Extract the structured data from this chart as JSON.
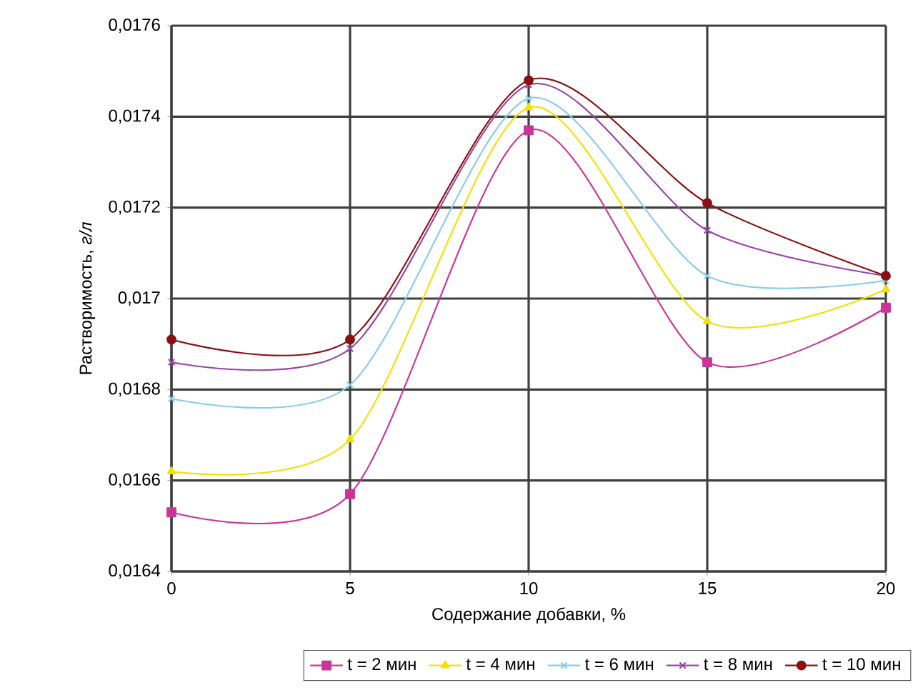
{
  "chart_data": {
    "type": "line",
    "xlabel": "Содержание добавки, %",
    "ylabel": "Растворимость, *г/л*",
    "x": [
      0,
      5,
      10,
      15,
      20
    ],
    "xlim": [
      0,
      20
    ],
    "xticks": [
      0,
      5,
      10,
      15,
      20
    ],
    "ylim": [
      0.0164,
      0.0176
    ],
    "yticks": [
      {
        "value": 0.0164,
        "label": "0,0164"
      },
      {
        "value": 0.0166,
        "label": "0,0166"
      },
      {
        "value": 0.0168,
        "label": "0,0168"
      },
      {
        "value": 0.017,
        "label": "0,017"
      },
      {
        "value": 0.0172,
        "label": "0,0172"
      },
      {
        "value": 0.0174,
        "label": "0,0174"
      },
      {
        "value": 0.0176,
        "label": "0,0176"
      }
    ],
    "grid": true,
    "legend": "bottom",
    "series": [
      {
        "name": "t = 2 мин",
        "color": "#cc3399",
        "marker": "square",
        "values": [
          0.01653,
          0.01657,
          0.01737,
          0.01686,
          0.01698
        ]
      },
      {
        "name": "t = 4 мин",
        "color": "#f5e000",
        "marker": "triangle",
        "values": [
          0.01662,
          0.01669,
          0.01742,
          0.01695,
          0.01702
        ]
      },
      {
        "name": "t = 6 мин",
        "color": "#88ccee",
        "marker": "cross",
        "values": [
          0.01678,
          0.01681,
          0.01744,
          0.01705,
          0.01704
        ]
      },
      {
        "name": "t = 8 мин",
        "color": "#9944aa",
        "marker": "cross",
        "values": [
          0.01686,
          0.01689,
          0.01747,
          0.01715,
          0.01705
        ]
      },
      {
        "name": "t = 10 мин",
        "color": "#8b1010",
        "marker": "circle",
        "values": [
          0.01691,
          0.01691,
          0.01748,
          0.01721,
          0.01705
        ]
      }
    ]
  }
}
